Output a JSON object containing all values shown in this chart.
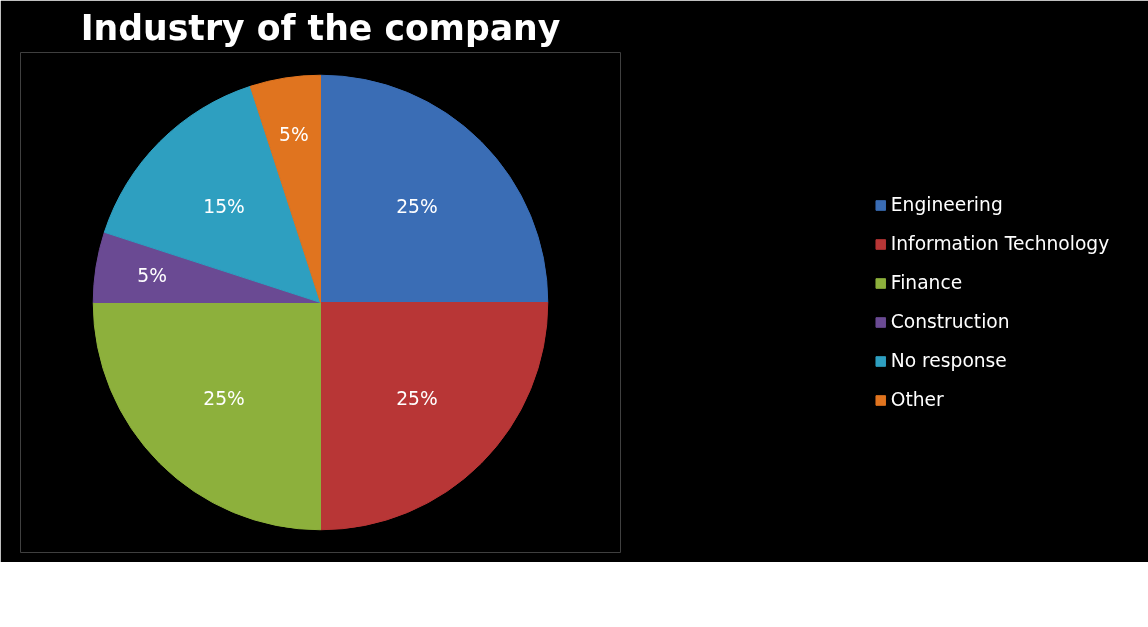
{
  "chart_data": {
    "type": "pie",
    "title": "Industry of the company",
    "categories": [
      "Engineering",
      "Information Technology",
      "Finance",
      "Construction",
      "No response",
      "Other"
    ],
    "values": [
      25,
      25,
      25,
      5,
      15,
      5
    ],
    "value_labels": [
      "25%",
      "25%",
      "25%",
      "5%",
      "15%",
      "5%"
    ],
    "colors": [
      "#3a6db5",
      "#b83636",
      "#8db03c",
      "#6a4a93",
      "#2e9fc0",
      "#e0741f"
    ],
    "legend": "right"
  }
}
